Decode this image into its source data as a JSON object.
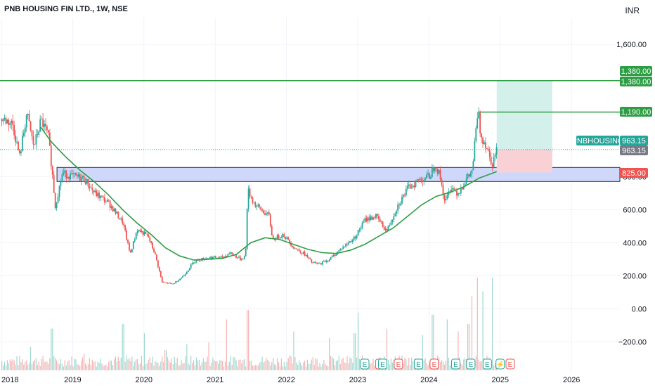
{
  "header": {
    "symbol_line": "PNB HOUSING FIN LTD., 1W, NSE",
    "currency": "INR"
  },
  "chart_data": {
    "type": "candlestick",
    "title": "PNB HOUSING FIN LTD., 1W, NSE",
    "ylim": [
      -300,
      1720
    ],
    "y_ticks": [
      "1,600.00",
      "800.00",
      "600.00",
      "400.00",
      "200.00",
      "0.00",
      "−200.00"
    ],
    "y_tick_values": [
      1600,
      800,
      600,
      400,
      200,
      0,
      -200
    ],
    "x_ticks": [
      "2018",
      "2019",
      "2020",
      "2021",
      "2022",
      "2023",
      "2024",
      "2025",
      "2026"
    ],
    "x_tick_years": [
      2018.0,
      2019.0,
      2020.0,
      2021.0,
      2022.0,
      2023.0,
      2024.0,
      2025.0,
      2026.0
    ],
    "x_range": [
      2018.0,
      2026.45
    ],
    "price_path": [
      [
        2018.0,
        1150
      ],
      [
        2018.15,
        1120
      ],
      [
        2018.25,
        920
      ],
      [
        2018.35,
        1180
      ],
      [
        2018.45,
        980
      ],
      [
        2018.55,
        1140
      ],
      [
        2018.65,
        1050
      ],
      [
        2018.7,
        860
      ],
      [
        2018.75,
        620
      ],
      [
        2018.85,
        820
      ],
      [
        2019.0,
        800
      ],
      [
        2019.15,
        790
      ],
      [
        2019.3,
        700
      ],
      [
        2019.5,
        640
      ],
      [
        2019.7,
        520
      ],
      [
        2019.8,
        330
      ],
      [
        2019.9,
        480
      ],
      [
        2020.05,
        440
      ],
      [
        2020.15,
        330
      ],
      [
        2020.25,
        160
      ],
      [
        2020.4,
        150
      ],
      [
        2020.55,
        200
      ],
      [
        2020.7,
        290
      ],
      [
        2020.9,
        310
      ],
      [
        2021.1,
        310
      ],
      [
        2021.2,
        340
      ],
      [
        2021.35,
        300
      ],
      [
        2021.42,
        320
      ],
      [
        2021.45,
        720
      ],
      [
        2021.55,
        630
      ],
      [
        2021.75,
        560
      ],
      [
        2021.8,
        420
      ],
      [
        2021.95,
        450
      ],
      [
        2022.1,
        370
      ],
      [
        2022.25,
        330
      ],
      [
        2022.35,
        280
      ],
      [
        2022.45,
        270
      ],
      [
        2022.6,
        300
      ],
      [
        2022.75,
        360
      ],
      [
        2022.95,
        430
      ],
      [
        2023.1,
        540
      ],
      [
        2023.25,
        560
      ],
      [
        2023.4,
        470
      ],
      [
        2023.55,
        620
      ],
      [
        2023.7,
        730
      ],
      [
        2023.85,
        780
      ],
      [
        2024.0,
        800
      ],
      [
        2024.08,
        880
      ],
      [
        2024.15,
        800
      ],
      [
        2024.22,
        640
      ],
      [
        2024.3,
        740
      ],
      [
        2024.4,
        700
      ],
      [
        2024.5,
        770
      ],
      [
        2024.6,
        830
      ],
      [
        2024.68,
        1200
      ],
      [
        2024.72,
        1050
      ],
      [
        2024.8,
        990
      ],
      [
        2024.88,
        880
      ],
      [
        2024.95,
        963
      ]
    ],
    "moving_average": [
      [
        2018.55,
        1100
      ],
      [
        2018.7,
        1010
      ],
      [
        2018.9,
        920
      ],
      [
        2019.1,
        840
      ],
      [
        2019.3,
        770
      ],
      [
        2019.5,
        690
      ],
      [
        2019.7,
        600
      ],
      [
        2019.9,
        520
      ],
      [
        2020.1,
        450
      ],
      [
        2020.3,
        370
      ],
      [
        2020.5,
        320
      ],
      [
        2020.7,
        295
      ],
      [
        2020.9,
        300
      ],
      [
        2021.1,
        305
      ],
      [
        2021.3,
        330
      ],
      [
        2021.5,
        400
      ],
      [
        2021.7,
        430
      ],
      [
        2021.9,
        420
      ],
      [
        2022.1,
        390
      ],
      [
        2022.3,
        360
      ],
      [
        2022.5,
        340
      ],
      [
        2022.7,
        335
      ],
      [
        2022.9,
        355
      ],
      [
        2023.1,
        390
      ],
      [
        2023.3,
        440
      ],
      [
        2023.5,
        490
      ],
      [
        2023.7,
        560
      ],
      [
        2023.9,
        630
      ],
      [
        2024.1,
        680
      ],
      [
        2024.3,
        705
      ],
      [
        2024.5,
        740
      ],
      [
        2024.7,
        790
      ],
      [
        2024.95,
        830
      ]
    ],
    "volume_spikes": [
      [
        2018.4,
        0.25
      ],
      [
        2018.7,
        0.45
      ],
      [
        2019.15,
        0.18
      ],
      [
        2019.7,
        0.5
      ],
      [
        2020.0,
        0.4
      ],
      [
        2020.3,
        0.22
      ],
      [
        2020.6,
        0.28
      ],
      [
        2020.9,
        0.3
      ],
      [
        2021.15,
        0.55
      ],
      [
        2021.45,
        0.65
      ],
      [
        2022.1,
        0.42
      ],
      [
        2022.6,
        0.35
      ],
      [
        2022.95,
        0.4
      ],
      [
        2023.0,
        0.62
      ],
      [
        2023.4,
        0.45
      ],
      [
        2023.9,
        0.38
      ],
      [
        2024.05,
        0.6
      ],
      [
        2024.25,
        0.55
      ],
      [
        2024.4,
        0.42
      ],
      [
        2024.55,
        0.5
      ],
      [
        2024.6,
        0.8
      ],
      [
        2024.68,
        1.0
      ],
      [
        2024.75,
        0.85
      ],
      [
        2024.88,
        1.0
      ]
    ],
    "levels": [
      {
        "name": "target-line",
        "value": 1380,
        "label": "1,380.00",
        "color": "#2e9e44"
      },
      {
        "name": "high-line",
        "value": 1190,
        "label": "1,190.00",
        "color": "#2e9e44",
        "x_start": 2024.69
      }
    ],
    "support_zone": {
      "top": 855,
      "bottom": 770,
      "label": "825.00",
      "fill": "#cfd8fb",
      "border": "#2a2e39"
    },
    "position": {
      "entry": 963.15,
      "stop": 825,
      "target": 1380,
      "x_start": 2024.95,
      "x_end": 2025.73,
      "profit_color": "#d4f0ea",
      "loss_color": "#f9d1d4"
    },
    "price_labels": {
      "target_top": "1,380.00",
      "target_bottom": "1,380.00",
      "high": "1,190.00",
      "symbol": "PNBHOUSING",
      "last": "963.15",
      "last2": "963.15",
      "stop": "825.00"
    },
    "event_markers": [
      {
        "year": 2024.05,
        "glyph": "E",
        "color": "#26a69a"
      },
      {
        "year": 2024.26,
        "glyph": "S",
        "color": "#ef5350"
      },
      {
        "year": 2024.3,
        "glyph": "E",
        "color": "#26a69a"
      },
      {
        "year": 2024.52,
        "glyph": "E",
        "color": "#ef5350"
      },
      {
        "year": 2024.8,
        "glyph": "E",
        "color": "#26a69a"
      },
      {
        "year": 2025.02,
        "glyph": "E",
        "color": "#ef5350"
      },
      {
        "year": 2025.32,
        "glyph": "E",
        "color": "#26a69a"
      },
      {
        "year": 2025.53,
        "glyph": "E",
        "color": "#26a69a"
      },
      {
        "year": 2025.76,
        "glyph": "E",
        "color": "#26a69a"
      },
      {
        "year": 2025.94,
        "glyph": "⚡",
        "color": "#26a69a"
      },
      {
        "year": 2026.08,
        "glyph": "E",
        "color": "#ef5350"
      }
    ],
    "colors": {
      "up": "#26a69a",
      "down": "#ef5350",
      "ma": "#2e9e44",
      "grid": "#f0f3fa",
      "text": "#131722"
    }
  }
}
